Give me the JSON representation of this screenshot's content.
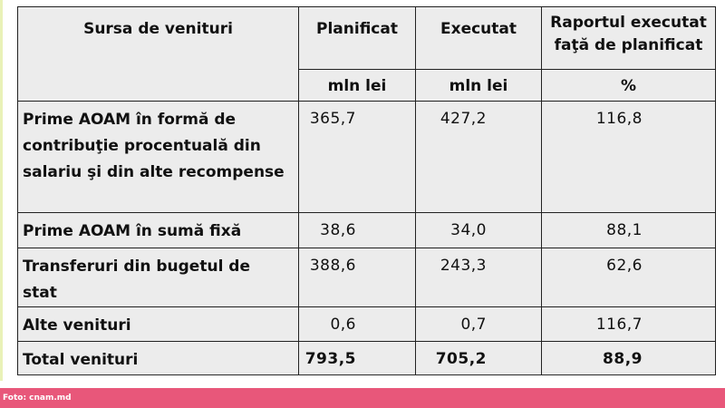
{
  "table": {
    "headers": {
      "col1": "Sursa de venituri",
      "col2": "Planificat",
      "col3": "Executat",
      "col4_line1": "Raportul executat",
      "col4_line2": "faţă de planificat"
    },
    "units": {
      "col2": "mln lei",
      "col3": "mln lei",
      "col4": "%"
    },
    "rows": [
      {
        "label": "Prime AOAM în formă de contribuţie procentuală din salariu şi din alte recompense",
        "planificat": "365,7",
        "executat": "427,2",
        "raport": "116,8"
      },
      {
        "label": "Prime AOAM în sumă fixă",
        "planificat": "38,6",
        "executat": "34,0",
        "raport": "88,1"
      },
      {
        "label": "Transferuri din bugetul de stat",
        "planificat": "388,6",
        "executat": "243,3",
        "raport": "62,6"
      },
      {
        "label": "Alte venituri",
        "planificat": "0,6",
        "executat": "0,7",
        "raport": "116,7"
      },
      {
        "label": "Total venituri",
        "planificat": "793,5",
        "executat": "705,2",
        "raport": "88,9"
      }
    ]
  },
  "caption": "Foto: cnam.md"
}
